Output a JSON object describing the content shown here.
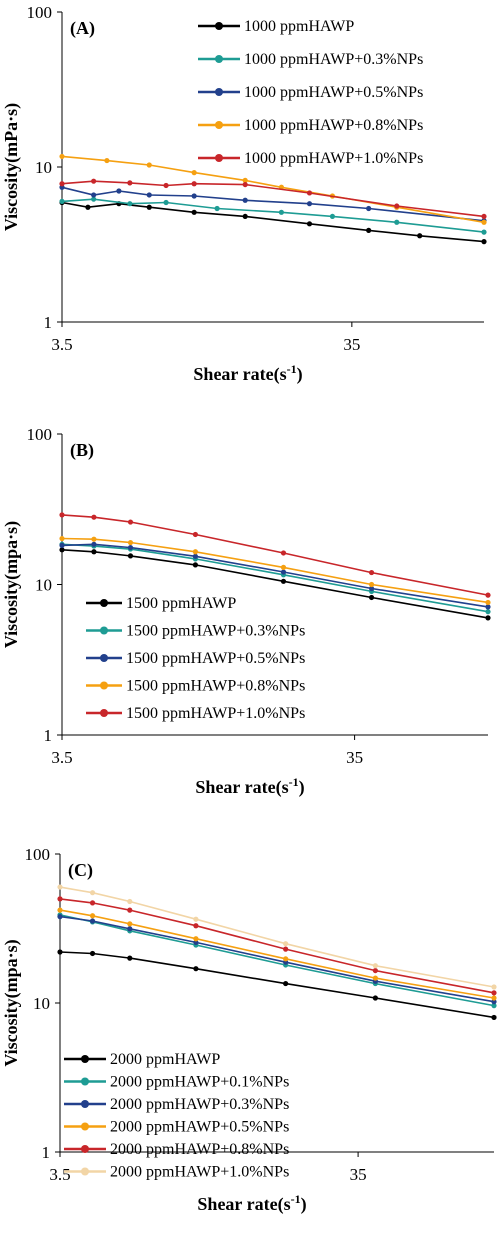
{
  "chart_data": [
    {
      "type": "line",
      "panel_label": "(A)",
      "xlabel": "Shear rate(s",
      "xlabel_sup": "-1",
      "xlabel_end": ")",
      "ylabel": "Viscosity(mPa·s)",
      "x_scale": "log",
      "y_scale": "log",
      "xlim": [
        3.5,
        100
      ],
      "ylim": [
        1,
        100
      ],
      "x_ticks": [
        "3.5",
        "35"
      ],
      "y_ticks": [
        "1",
        "10",
        "100"
      ],
      "legend_position": "top-right",
      "series": [
        {
          "name": "1000 ppmHAWP",
          "color": "#000000",
          "x": [
            3.5,
            4.3,
            5.5,
            7,
            10,
            15,
            25,
            40,
            60,
            100
          ],
          "y": [
            5.9,
            5.5,
            5.8,
            5.5,
            5.1,
            4.8,
            4.3,
            3.9,
            3.6,
            3.3
          ]
        },
        {
          "name": "1000 ppmHAWP+0.3%NPs",
          "color": "#1e9c94",
          "x": [
            3.5,
            4.5,
            6,
            8,
            12,
            20,
            30,
            50,
            100
          ],
          "y": [
            6.0,
            6.2,
            5.8,
            5.9,
            5.4,
            5.1,
            4.8,
            4.4,
            3.8
          ]
        },
        {
          "name": "1000 ppmHAWP+0.5%NPs",
          "color": "#22408c",
          "x": [
            3.5,
            4.5,
            5.5,
            7,
            10,
            15,
            25,
            40,
            100
          ],
          "y": [
            7.4,
            6.6,
            7.0,
            6.6,
            6.5,
            6.1,
            5.8,
            5.4,
            4.5
          ]
        },
        {
          "name": "1000 ppmHAWP+0.8%NPs",
          "color": "#f5a011",
          "x": [
            3.5,
            5,
            7,
            10,
            15,
            20,
            30,
            50,
            100
          ],
          "y": [
            11.7,
            11.0,
            10.3,
            9.2,
            8.2,
            7.4,
            6.5,
            5.5,
            4.4
          ]
        },
        {
          "name": "1000 ppmHAWP+1.0%NPs",
          "color": "#c8262a",
          "x": [
            3.5,
            4.5,
            6,
            8,
            10,
            15,
            25,
            50,
            100
          ],
          "y": [
            7.8,
            8.1,
            7.9,
            7.6,
            7.8,
            7.7,
            6.8,
            5.6,
            4.8
          ]
        }
      ]
    },
    {
      "type": "line",
      "panel_label": "(B)",
      "xlabel": "Shear rate(s",
      "xlabel_sup": "-1",
      "xlabel_end": ")",
      "ylabel": "Viscosity(mpa·s)",
      "x_scale": "log",
      "y_scale": "log",
      "xlim": [
        3.5,
        100
      ],
      "ylim": [
        1,
        100
      ],
      "x_ticks": [
        "3.5",
        "35"
      ],
      "y_ticks": [
        "1",
        "10",
        "100"
      ],
      "legend_position": "bottom-left",
      "series": [
        {
          "name": "1500 ppmHAWP",
          "color": "#000000",
          "x": [
            3.5,
            4.5,
            6,
            10,
            20,
            40,
            100
          ],
          "y": [
            17.0,
            16.5,
            15.5,
            13.5,
            10.5,
            8.2,
            6.0
          ]
        },
        {
          "name": "1500 ppmHAWP+0.3%NPs",
          "color": "#1e9c94",
          "x": [
            3.5,
            4.5,
            6,
            10,
            20,
            40,
            100
          ],
          "y": [
            18.5,
            18.0,
            17.2,
            14.8,
            11.6,
            9.0,
            6.6
          ]
        },
        {
          "name": "1500 ppmHAWP+0.5%NPs",
          "color": "#22408c",
          "x": [
            3.5,
            4.5,
            6,
            10,
            20,
            40,
            100
          ],
          "y": [
            18.2,
            18.5,
            17.6,
            15.4,
            12.1,
            9.4,
            7.1
          ]
        },
        {
          "name": "1500 ppmHAWP+0.8%NPs",
          "color": "#f5a011",
          "x": [
            3.5,
            4.5,
            6,
            10,
            20,
            40,
            100
          ],
          "y": [
            20.2,
            20.0,
            19.0,
            16.5,
            13.0,
            10.0,
            7.6
          ]
        },
        {
          "name": "1500 ppmHAWP+1.0%NPs",
          "color": "#c8262a",
          "x": [
            3.5,
            4.5,
            6,
            10,
            20,
            40,
            100
          ],
          "y": [
            29.0,
            28.0,
            26.0,
            21.5,
            16.2,
            12.0,
            8.5
          ]
        }
      ]
    },
    {
      "type": "line",
      "panel_label": "(C)",
      "xlabel": "Shear rate(s",
      "xlabel_sup": "-1",
      "xlabel_end": ")",
      "ylabel": "Viscosity(mpa·s)",
      "x_scale": "log",
      "y_scale": "log",
      "xlim": [
        3.5,
        100
      ],
      "ylim": [
        1,
        100
      ],
      "x_ticks": [
        "3.5",
        "35"
      ],
      "y_ticks": [
        "1",
        "10",
        "100"
      ],
      "legend_position": "bottom-left",
      "series": [
        {
          "name": "2000 ppmHAWP",
          "color": "#000000",
          "x": [
            3.5,
            4.5,
            6,
            10,
            20,
            40,
            100
          ],
          "y": [
            22.0,
            21.5,
            20.0,
            17.0,
            13.5,
            10.8,
            8.0
          ]
        },
        {
          "name": "2000 ppmHAWP+0.1%NPs",
          "color": "#1e9c94",
          "x": [
            3.5,
            4.5,
            6,
            10,
            20,
            40,
            100
          ],
          "y": [
            39.0,
            35.0,
            30.5,
            24.5,
            18.0,
            13.5,
            9.6
          ]
        },
        {
          "name": "2000 ppmHAWP+0.3%NPs",
          "color": "#22408c",
          "x": [
            3.5,
            4.5,
            6,
            10,
            20,
            40,
            100
          ],
          "y": [
            38.0,
            35.5,
            31.5,
            25.5,
            18.8,
            14.0,
            10.2
          ]
        },
        {
          "name": "2000 ppmHAWP+0.5%NPs",
          "color": "#f5a011",
          "x": [
            3.5,
            4.5,
            6,
            10,
            20,
            40,
            100
          ],
          "y": [
            42.0,
            38.5,
            34.0,
            27.0,
            19.8,
            14.7,
            10.8
          ]
        },
        {
          "name": "2000 ppmHAWP+0.8%NPs",
          "color": "#c8262a",
          "x": [
            3.5,
            4.5,
            6,
            10,
            20,
            40,
            100
          ],
          "y": [
            50.0,
            47.0,
            42.0,
            33.0,
            23.0,
            16.5,
            11.7
          ]
        },
        {
          "name": "2000 ppmHAWP+1.0%NPs",
          "color": "#f2d5a6",
          "x": [
            3.5,
            4.5,
            6,
            10,
            20,
            40,
            100
          ],
          "y": [
            60.0,
            55.0,
            48.0,
            36.5,
            25.0,
            17.8,
            12.8
          ]
        }
      ]
    }
  ]
}
